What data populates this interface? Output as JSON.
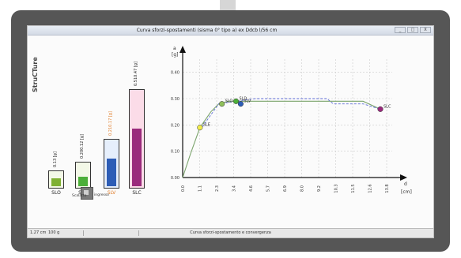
{
  "window": {
    "title": "Curva sforzi-spostamenti (sisma 0° tipo a) ex Ddcb l/56 cm",
    "buttons": [
      "_",
      "□",
      "X"
    ]
  },
  "logo_text": "StruCTure",
  "bars": [
    {
      "category": "SLO",
      "label": "0.13 [g]",
      "value_label_color": "#222222",
      "fill_fraction": 0.55,
      "box_color": "#f3f8e7",
      "border_color": "#333333",
      "fill_color": "#7fb033"
    },
    {
      "category": "SLD",
      "label": "0.200.12 [g]",
      "value_label_color": "#222222",
      "fill_fraction": 0.4,
      "box_color": "#f3f8e7",
      "border_color": "#333333",
      "fill_color": "#4caf39"
    },
    {
      "category": "SLV",
      "label": "0.210.17 [g]",
      "value_label_color": "#e07d2a",
      "fill_fraction": 0.6,
      "box_color": "#e6effc",
      "border_color": "#333333",
      "fill_color": "#2d5db6"
    },
    {
      "category": "SLC",
      "label": "0.510.47 [g]",
      "value_label_color": "#222222",
      "fill_fraction": 0.6,
      "box_color": "#fbdce8",
      "border_color": "#333333",
      "fill_color": "#9a2a7c"
    }
  ],
  "legend": {
    "left": "Scalatto",
    "right": "ingresso"
  },
  "chart_data": {
    "type": "line",
    "title": "",
    "xlabel": "[cm]",
    "ylabel": "[g]",
    "y_axis_symbol": "a",
    "x_axis_symbol": "d",
    "xlim": [
      0,
      12.6
    ],
    "ylim": [
      0,
      0.45
    ],
    "x_ticks": [
      "0.0",
      "1.1",
      "2.3",
      "3.4",
      "4.6",
      "5.7",
      "6.9",
      "8.0",
      "9.2",
      "10.3",
      "11.5",
      "12.6",
      "13.8"
    ],
    "y_ticks": [
      "0.00",
      "0.10",
      "0.20",
      "0.30",
      "0.40"
    ],
    "grid": true,
    "series": [
      {
        "name": "",
        "color": "#7aa36b",
        "x": [
          0,
          0.5,
          1.1,
          1.8,
          2.3,
          2.9,
          3.4,
          4.6,
          6.9,
          9.2,
          11.5,
          12.6
        ],
        "y": [
          0,
          0.09,
          0.19,
          0.25,
          0.28,
          0.29,
          0.29,
          0.29,
          0.29,
          0.29,
          0.29,
          0.26
        ]
      },
      {
        "name": "",
        "color": "#5c6bd6",
        "x": [
          1.1,
          2.3,
          3.4,
          4.6,
          5.7,
          6.9,
          8.0,
          9.2,
          9.6,
          10.3,
          11.5,
          12.6
        ],
        "y": [
          0.18,
          0.28,
          0.29,
          0.3,
          0.3,
          0.3,
          0.3,
          0.3,
          0.28,
          0.28,
          0.28,
          0.26
        ]
      }
    ],
    "points": [
      {
        "name": "SLE",
        "x": 1.1,
        "y": 0.19,
        "color": "#f1ec4b"
      },
      {
        "name": "SLO",
        "x": 2.5,
        "y": 0.28,
        "color": "#8fbf5b"
      },
      {
        "name": "SLD",
        "x": 3.4,
        "y": 0.29,
        "color": "#4caf39"
      },
      {
        "name": "SLV",
        "x": 3.7,
        "y": 0.28,
        "color": "#2d5db6"
      },
      {
        "name": "SLC",
        "x": 12.6,
        "y": 0.26,
        "color": "#9a2a7c"
      }
    ]
  },
  "statusbar": {
    "left": "1.27 cm",
    "left2": "100 g",
    "center": "Curva sforzi-spostamento e convergenza"
  }
}
